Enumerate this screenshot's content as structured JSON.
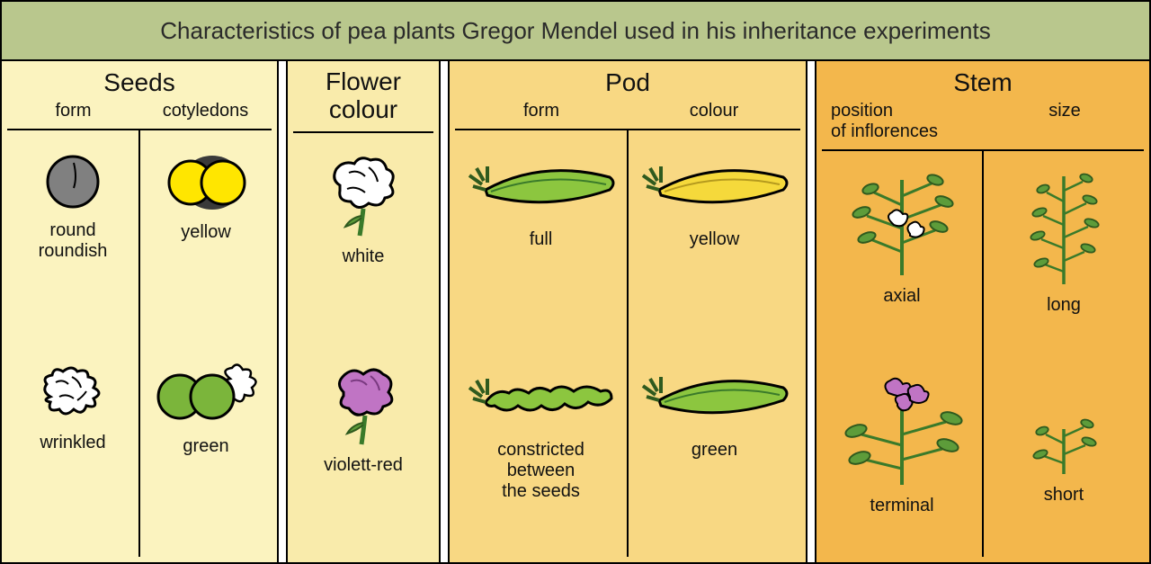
{
  "title": "Characteristics of pea plants Gregor Mendel used in his inheritance experiments",
  "title_bg": "#b9c78d",
  "panels": {
    "seeds": {
      "title": "Seeds",
      "bg": "#fbf3bf",
      "cols": [
        "form",
        "cotyledons"
      ],
      "items": {
        "form_top": "round\nroundish",
        "form_bot": "wrinkled",
        "cot_top": "yellow",
        "cot_bot": "green"
      }
    },
    "flower": {
      "title": "Flower colour",
      "bg": "#f9ebab",
      "items": {
        "top": "white",
        "bot": "violett-red"
      }
    },
    "pod": {
      "title": "Pod",
      "bg": "#f8d883",
      "cols": [
        "form",
        "colour"
      ],
      "items": {
        "form_top": "full",
        "form_bot": "constricted\nbetween\nthe seeds",
        "col_top": "yellow",
        "col_bot": "green"
      }
    },
    "stem": {
      "title": "Stem",
      "bg": "#f3b74c",
      "cols": [
        "position\nof inflorences",
        "size"
      ],
      "items": {
        "pos_top": "axial",
        "pos_bot": "terminal",
        "size_top": "long",
        "size_bot": "short"
      }
    }
  },
  "colors": {
    "seed_grey": "#808080",
    "seed_stroke": "#000000",
    "cot_yellow": "#ffe600",
    "cot_green": "#7bb53b",
    "flower_white": "#ffffff",
    "flower_violet": "#c074c4",
    "flower_stem": "#3a7a2a",
    "pod_green": "#8cc63f",
    "pod_dark": "#3a7a2a",
    "pod_yellow": "#f5d93b",
    "plant_green": "#5d9c3a",
    "plant_dark": "#2f5a1e"
  }
}
